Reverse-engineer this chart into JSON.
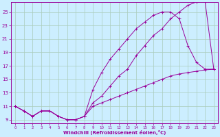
{
  "background_color": "#cceeff",
  "grid_color": "#aaccbb",
  "line_color": "#990099",
  "xlim": [
    -0.5,
    23.5
  ],
  "ylim": [
    8.5,
    26.5
  ],
  "xticks": [
    0,
    1,
    2,
    3,
    4,
    5,
    6,
    7,
    8,
    9,
    10,
    11,
    12,
    13,
    14,
    15,
    16,
    17,
    18,
    19,
    20,
    21,
    22,
    23
  ],
  "yticks": [
    9,
    11,
    13,
    15,
    17,
    19,
    21,
    23,
    25
  ],
  "xlabel": "Windchill (Refroidissement éolien,°C)",
  "curve1_x": [
    0,
    1,
    2,
    3,
    4,
    5,
    6,
    7,
    8,
    9,
    10,
    11,
    12,
    13,
    14,
    15,
    16,
    17,
    18,
    19,
    20,
    21,
    22,
    23
  ],
  "curve1_y": [
    11,
    10.3,
    9.5,
    10.3,
    10.3,
    9.5,
    9.0,
    9.0,
    9.5,
    11.5,
    12.5,
    14.0,
    15.5,
    16.5,
    18.5,
    20.0,
    21.5,
    22.5,
    24.0,
    25.0,
    26.0,
    26.5,
    26.5,
    16.5
  ],
  "curve2_x": [
    0,
    1,
    2,
    3,
    4,
    5,
    6,
    7,
    8,
    9,
    10,
    11,
    12,
    13,
    14,
    15,
    16,
    17,
    18,
    19,
    20,
    21,
    22,
    23
  ],
  "curve2_y": [
    11,
    10.3,
    9.5,
    10.3,
    10.3,
    9.5,
    9.0,
    9.0,
    9.5,
    13.5,
    16.0,
    18.0,
    19.5,
    21.0,
    22.5,
    23.5,
    24.5,
    25.0,
    25.0,
    24.0,
    20.0,
    17.5,
    16.5,
    16.5
  ],
  "curve3_x": [
    0,
    1,
    2,
    3,
    4,
    5,
    6,
    7,
    8,
    9,
    10,
    11,
    12,
    13,
    14,
    15,
    16,
    17,
    18,
    19,
    20,
    21,
    22,
    23
  ],
  "curve3_y": [
    11,
    10.3,
    9.5,
    10.3,
    10.3,
    9.5,
    9.0,
    9.0,
    9.5,
    11.0,
    11.5,
    12.0,
    12.5,
    13.0,
    13.5,
    14.0,
    14.5,
    15.0,
    15.5,
    15.8,
    16.0,
    16.2,
    16.4,
    16.5
  ]
}
